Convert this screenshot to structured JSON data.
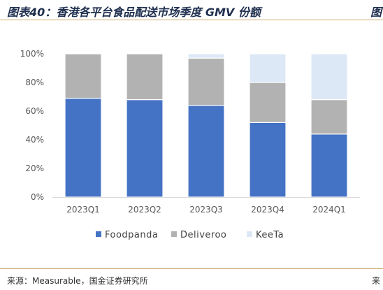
{
  "header": {
    "title": "图表40：香港各平台食品配送市场季度 GMV 份额",
    "title_right": "图"
  },
  "footer": {
    "source": "来源：Measurable，国金证券研究所",
    "source_right": "来"
  },
  "chart_data": {
    "type": "bar",
    "stacked": true,
    "categories": [
      "2023Q1",
      "2023Q2",
      "2023Q3",
      "2023Q4",
      "2024Q1"
    ],
    "series": [
      {
        "name": "Foodpanda",
        "color": "#4472c4",
        "values": [
          69,
          68,
          64,
          52,
          44
        ]
      },
      {
        "name": "Deliveroo",
        "color": "#b2b2b2",
        "values": [
          31,
          32,
          33,
          28,
          24
        ]
      },
      {
        "name": "KeeTa",
        "color": "#dde8f6",
        "values": [
          0,
          0,
          3,
          20,
          32
        ]
      }
    ],
    "ylim": [
      0,
      100
    ],
    "yticks": [
      "0%",
      "20%",
      "40%",
      "60%",
      "80%",
      "100%"
    ],
    "y_unit": "%",
    "grid": false,
    "legend_position": "bottom"
  }
}
